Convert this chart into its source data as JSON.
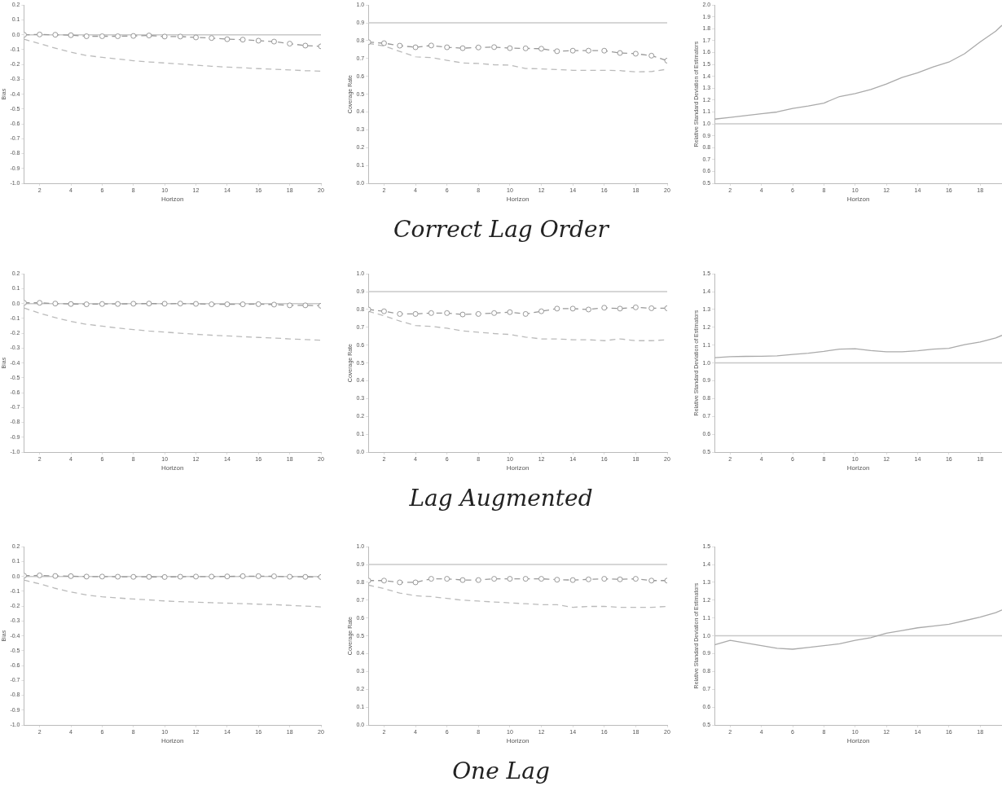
{
  "chart_data": [
    {
      "type": "line",
      "xlabel": "Horizon",
      "ylabel": "Bias",
      "x": [
        1,
        2,
        3,
        4,
        5,
        6,
        7,
        8,
        9,
        10,
        11,
        12,
        13,
        14,
        15,
        16,
        17,
        18,
        19,
        20
      ],
      "xlim": [
        1,
        20
      ],
      "xticks": [
        2,
        4,
        6,
        8,
        10,
        12,
        14,
        16,
        18,
        20
      ],
      "ylim": [
        -1,
        0.2
      ],
      "yticks": [
        {
          "value": -1,
          "label": "-1.0"
        },
        -0.9,
        -0.8,
        -0.7,
        -0.6,
        -0.5,
        -0.4,
        -0.3,
        -0.2,
        -0.1,
        {
          "value": 0,
          "label": "0.0"
        },
        0.1,
        0.2
      ],
      "grid": false,
      "legend": false,
      "ref_lines": [
        {
          "axis": "y",
          "value": 0,
          "color": "#c8c8c8",
          "line_style": "solid"
        }
      ],
      "series": [
        {
          "color": "#999999",
          "marker": "circle",
          "line_style": "dashed",
          "values": [
            0.0,
            0.002,
            0.0,
            -0.003,
            -0.01,
            -0.01,
            -0.01,
            -0.008,
            -0.005,
            -0.012,
            -0.012,
            -0.018,
            -0.022,
            -0.03,
            -0.033,
            -0.04,
            -0.046,
            -0.06,
            -0.073,
            -0.078
          ]
        },
        {
          "color": "#bbbbbb",
          "marker": "none",
          "line_style": "dashed",
          "values": [
            -0.03,
            -0.06,
            -0.09,
            -0.118,
            -0.14,
            -0.152,
            -0.163,
            -0.175,
            -0.183,
            -0.19,
            -0.197,
            -0.205,
            -0.212,
            -0.218,
            -0.222,
            -0.228,
            -0.232,
            -0.237,
            -0.242,
            -0.245
          ]
        }
      ]
    },
    {
      "type": "line",
      "title": "Correct Lag Order",
      "xlabel": "Horizon",
      "ylabel": "Coverage Rate",
      "x": [
        1,
        2,
        3,
        4,
        5,
        6,
        7,
        8,
        9,
        10,
        11,
        12,
        13,
        14,
        15,
        16,
        17,
        18,
        19,
        20
      ],
      "xlim": [
        1,
        20
      ],
      "xticks": [
        2,
        4,
        6,
        8,
        10,
        12,
        14,
        16,
        18,
        20
      ],
      "ylim": [
        0,
        1
      ],
      "yticks": [
        {
          "value": 0,
          "label": "0.0"
        },
        0.1,
        0.2,
        0.3,
        0.4,
        0.5,
        0.6,
        0.7,
        0.8,
        0.9,
        {
          "value": 1,
          "label": "1.0"
        }
      ],
      "grid": false,
      "legend": false,
      "ref_lines": [
        {
          "axis": "y",
          "value": 0.9,
          "color": "#c8c8c8",
          "line_style": "solid"
        }
      ],
      "series": [
        {
          "color": "#999999",
          "marker": "circle",
          "line_style": "dashed",
          "values": [
            0.792,
            0.786,
            0.772,
            0.763,
            0.773,
            0.763,
            0.758,
            0.762,
            0.764,
            0.758,
            0.757,
            0.755,
            0.741,
            0.744,
            0.744,
            0.744,
            0.731,
            0.727,
            0.716,
            0.688
          ]
        },
        {
          "color": "#bbbbbb",
          "marker": "none",
          "line_style": "dashed",
          "values": [
            0.785,
            0.77,
            0.74,
            0.71,
            0.705,
            0.69,
            0.675,
            0.672,
            0.665,
            0.663,
            0.644,
            0.642,
            0.638,
            0.634,
            0.634,
            0.634,
            0.632,
            0.625,
            0.627,
            0.64
          ]
        }
      ]
    },
    {
      "type": "line",
      "xlabel": "Horizon",
      "ylabel": "Relative Standard Deviation of Estimators",
      "x": [
        1,
        2,
        3,
        4,
        5,
        6,
        7,
        8,
        9,
        10,
        11,
        12,
        13,
        14,
        15,
        16,
        17,
        18,
        19,
        19.4
      ],
      "xlim": [
        1,
        19.4
      ],
      "xticks": [
        2,
        4,
        6,
        8,
        10,
        12,
        14,
        16,
        18
      ],
      "ylim": [
        0.5,
        2
      ],
      "yticks": [
        0.5,
        0.6,
        0.7,
        0.8,
        0.9,
        {
          "value": 1,
          "label": "1.0"
        },
        1.1,
        1.2,
        1.3,
        1.4,
        1.5,
        1.6,
        1.7,
        1.8,
        1.9,
        {
          "value": 2,
          "label": "2.0"
        }
      ],
      "grid": false,
      "legend": false,
      "ref_lines": [
        {
          "axis": "y",
          "value": 1,
          "color": "#c8c8c8",
          "line_style": "solid"
        }
      ],
      "series": [
        {
          "color": "#aaaaaa",
          "marker": "none",
          "line_style": "solid",
          "values": [
            1.04,
            1.055,
            1.07,
            1.085,
            1.1,
            1.13,
            1.15,
            1.175,
            1.23,
            1.255,
            1.29,
            1.335,
            1.39,
            1.43,
            1.48,
            1.52,
            1.59,
            1.69,
            1.78,
            1.83
          ]
        }
      ]
    },
    {
      "type": "line",
      "xlabel": "Horizon",
      "ylabel": "Bias",
      "x": [
        1,
        2,
        3,
        4,
        5,
        6,
        7,
        8,
        9,
        10,
        11,
        12,
        13,
        14,
        15,
        16,
        17,
        18,
        19,
        20
      ],
      "xlim": [
        1,
        20
      ],
      "xticks": [
        2,
        4,
        6,
        8,
        10,
        12,
        14,
        16,
        18,
        20
      ],
      "ylim": [
        -1,
        0.2
      ],
      "yticks": [
        {
          "value": -1,
          "label": "-1.0"
        },
        -0.9,
        -0.8,
        -0.7,
        -0.6,
        -0.5,
        -0.4,
        -0.3,
        -0.2,
        -0.1,
        {
          "value": 0,
          "label": "0.0"
        },
        0.1,
        0.2
      ],
      "grid": false,
      "legend": false,
      "ref_lines": [
        {
          "axis": "y",
          "value": 0,
          "color": "#c8c8c8",
          "line_style": "solid"
        }
      ],
      "series": [
        {
          "color": "#999999",
          "marker": "circle",
          "line_style": "dashed",
          "values": [
            0.005,
            0.005,
            0.0,
            -0.003,
            -0.005,
            -0.003,
            -0.003,
            -0.001,
            0.0,
            -0.001,
            0.0,
            -0.002,
            -0.005,
            -0.005,
            -0.005,
            -0.004,
            -0.007,
            -0.012,
            -0.012,
            -0.015
          ]
        },
        {
          "color": "#bbbbbb",
          "marker": "none",
          "line_style": "dashed",
          "values": [
            -0.03,
            -0.065,
            -0.095,
            -0.12,
            -0.14,
            -0.152,
            -0.165,
            -0.175,
            -0.185,
            -0.192,
            -0.2,
            -0.207,
            -0.213,
            -0.218,
            -0.223,
            -0.228,
            -0.232,
            -0.238,
            -0.243,
            -0.247
          ]
        }
      ]
    },
    {
      "type": "line",
      "title": "Lag Augmented",
      "xlabel": "Horizon",
      "ylabel": "Coverage Rate",
      "x": [
        1,
        2,
        3,
        4,
        5,
        6,
        7,
        8,
        9,
        10,
        11,
        12,
        13,
        14,
        15,
        16,
        17,
        18,
        19,
        20
      ],
      "xlim": [
        1,
        20
      ],
      "xticks": [
        2,
        4,
        6,
        8,
        10,
        12,
        14,
        16,
        18,
        20
      ],
      "ylim": [
        0,
        1
      ],
      "yticks": [
        {
          "value": 0,
          "label": "0.0"
        },
        0.1,
        0.2,
        0.3,
        0.4,
        0.5,
        0.6,
        0.7,
        0.8,
        0.9,
        {
          "value": 1,
          "label": "1.0"
        }
      ],
      "grid": false,
      "legend": false,
      "ref_lines": [
        {
          "axis": "y",
          "value": 0.9,
          "color": "#c8c8c8",
          "line_style": "solid"
        }
      ],
      "series": [
        {
          "color": "#999999",
          "marker": "circle",
          "line_style": "dashed",
          "values": [
            0.8,
            0.79,
            0.775,
            0.775,
            0.78,
            0.78,
            0.772,
            0.775,
            0.78,
            0.785,
            0.775,
            0.79,
            0.805,
            0.805,
            0.8,
            0.81,
            0.805,
            0.812,
            0.807,
            0.807
          ]
        },
        {
          "color": "#bbbbbb",
          "marker": "none",
          "line_style": "dashed",
          "values": [
            0.79,
            0.765,
            0.735,
            0.71,
            0.705,
            0.695,
            0.68,
            0.672,
            0.665,
            0.66,
            0.645,
            0.635,
            0.635,
            0.63,
            0.63,
            0.625,
            0.635,
            0.625,
            0.625,
            0.63
          ]
        }
      ]
    },
    {
      "type": "line",
      "xlabel": "Horizon",
      "ylabel": "Relative Standard Deviation of Estimators",
      "x": [
        1,
        2,
        3,
        4,
        5,
        6,
        7,
        8,
        9,
        10,
        11,
        12,
        13,
        14,
        15,
        16,
        17,
        18,
        19,
        19.4
      ],
      "xlim": [
        1,
        19.4
      ],
      "xticks": [
        2,
        4,
        6,
        8,
        10,
        12,
        14,
        16,
        18
      ],
      "ylim": [
        0.5,
        1.5
      ],
      "yticks": [
        0.5,
        0.6,
        0.7,
        0.8,
        0.9,
        {
          "value": 1,
          "label": "1.0"
        },
        1.1,
        1.2,
        1.3,
        1.4,
        1.5
      ],
      "grid": false,
      "legend": false,
      "ref_lines": [
        {
          "axis": "y",
          "value": 1,
          "color": "#c8c8c8",
          "line_style": "solid"
        }
      ],
      "series": [
        {
          "color": "#aaaaaa",
          "marker": "none",
          "line_style": "solid",
          "values": [
            1.03,
            1.035,
            1.037,
            1.038,
            1.04,
            1.048,
            1.055,
            1.065,
            1.078,
            1.08,
            1.07,
            1.063,
            1.063,
            1.068,
            1.078,
            1.082,
            1.103,
            1.118,
            1.14,
            1.155
          ]
        }
      ]
    },
    {
      "type": "line",
      "xlabel": "Horizon",
      "ylabel": "Bias",
      "x": [
        1,
        2,
        3,
        4,
        5,
        6,
        7,
        8,
        9,
        10,
        11,
        12,
        13,
        14,
        15,
        16,
        17,
        18,
        19,
        20
      ],
      "xlim": [
        1,
        20
      ],
      "xticks": [
        2,
        4,
        6,
        8,
        10,
        12,
        14,
        16,
        18,
        20
      ],
      "ylim": [
        -1,
        0.2
      ],
      "yticks": [
        {
          "value": -1,
          "label": "-1.0"
        },
        -0.9,
        -0.8,
        -0.7,
        -0.6,
        -0.5,
        -0.4,
        -0.3,
        -0.2,
        -0.1,
        {
          "value": 0,
          "label": "0.0"
        },
        0.1,
        0.2
      ],
      "grid": false,
      "legend": false,
      "ref_lines": [
        {
          "axis": "y",
          "value": 0,
          "color": "#c8c8c8",
          "line_style": "solid"
        }
      ],
      "series": [
        {
          "color": "#999999",
          "marker": "circle",
          "line_style": "dashed",
          "values": [
            0.005,
            0.007,
            0.003,
            0.002,
            -0.001,
            -0.001,
            -0.002,
            -0.003,
            -0.003,
            -0.004,
            -0.002,
            -0.001,
            -0.001,
            0.0,
            0.002,
            0.002,
            0.001,
            -0.002,
            -0.003,
            -0.004
          ]
        },
        {
          "color": "#bbbbbb",
          "marker": "none",
          "line_style": "dashed",
          "values": [
            -0.025,
            -0.05,
            -0.08,
            -0.105,
            -0.125,
            -0.137,
            -0.145,
            -0.152,
            -0.158,
            -0.165,
            -0.17,
            -0.173,
            -0.177,
            -0.18,
            -0.183,
            -0.187,
            -0.19,
            -0.195,
            -0.2,
            -0.205
          ]
        }
      ]
    },
    {
      "type": "line",
      "title": "One Lag",
      "xlabel": "Horizon",
      "ylabel": "Coverage Rate",
      "x": [
        1,
        2,
        3,
        4,
        5,
        6,
        7,
        8,
        9,
        10,
        11,
        12,
        13,
        14,
        15,
        16,
        17,
        18,
        19,
        20
      ],
      "xlim": [
        1,
        20
      ],
      "xticks": [
        2,
        4,
        6,
        8,
        10,
        12,
        14,
        16,
        18,
        20
      ],
      "ylim": [
        0,
        1
      ],
      "yticks": [
        {
          "value": 0,
          "label": "0.0"
        },
        0.1,
        0.2,
        0.3,
        0.4,
        0.5,
        0.6,
        0.7,
        0.8,
        0.9,
        {
          "value": 1,
          "label": "1.0"
        }
      ],
      "grid": false,
      "legend": false,
      "ref_lines": [
        {
          "axis": "y",
          "value": 0.9,
          "color": "#c8c8c8",
          "line_style": "solid"
        }
      ],
      "series": [
        {
          "color": "#999999",
          "marker": "circle",
          "line_style": "dashed",
          "values": [
            0.81,
            0.81,
            0.8,
            0.8,
            0.82,
            0.82,
            0.813,
            0.813,
            0.82,
            0.82,
            0.82,
            0.82,
            0.815,
            0.813,
            0.817,
            0.82,
            0.817,
            0.82,
            0.81,
            0.81
          ]
        },
        {
          "color": "#bbbbbb",
          "marker": "none",
          "line_style": "dashed",
          "values": [
            0.785,
            0.765,
            0.74,
            0.725,
            0.72,
            0.71,
            0.7,
            0.695,
            0.69,
            0.685,
            0.68,
            0.675,
            0.675,
            0.66,
            0.665,
            0.665,
            0.66,
            0.66,
            0.66,
            0.665
          ]
        }
      ]
    },
    {
      "type": "line",
      "xlabel": "Horizon",
      "ylabel": "Relative Standard Deviation of Estimators",
      "x": [
        1,
        2,
        3,
        4,
        5,
        6,
        7,
        8,
        9,
        10,
        11,
        12,
        13,
        14,
        15,
        16,
        17,
        18,
        19,
        19.4
      ],
      "xlim": [
        1,
        19.4
      ],
      "xticks": [
        2,
        4,
        6,
        8,
        10,
        12,
        14,
        16,
        18
      ],
      "ylim": [
        0.5,
        1.5
      ],
      "yticks": [
        0.5,
        0.6,
        0.7,
        0.8,
        0.9,
        {
          "value": 1,
          "label": "1.0"
        },
        1.1,
        1.2,
        1.3,
        1.4,
        1.5
      ],
      "grid": false,
      "legend": false,
      "ref_lines": [
        {
          "axis": "y",
          "value": 1,
          "color": "#c8c8c8",
          "line_style": "solid"
        }
      ],
      "series": [
        {
          "color": "#aaaaaa",
          "marker": "none",
          "line_style": "solid",
          "values": [
            0.95,
            0.975,
            0.96,
            0.945,
            0.93,
            0.925,
            0.935,
            0.945,
            0.955,
            0.975,
            0.99,
            1.015,
            1.03,
            1.045,
            1.055,
            1.065,
            1.085,
            1.105,
            1.13,
            1.145
          ]
        }
      ]
    }
  ]
}
